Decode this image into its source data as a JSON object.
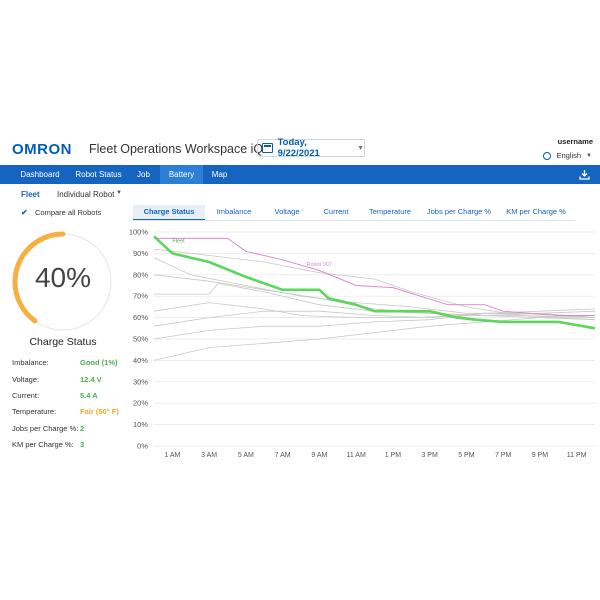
{
  "header": {
    "logo": "OMRON",
    "app_title": "Fleet Operations Workspace iQ",
    "date": "Today, 9/22/2021",
    "username": "username",
    "language": "English"
  },
  "nav": {
    "items": [
      {
        "label": "Dashboard"
      },
      {
        "label": "Robot Status"
      },
      {
        "label": "Job"
      },
      {
        "label": "Battery",
        "active": true
      },
      {
        "label": "Map"
      }
    ]
  },
  "subnav": {
    "fleet": "Fleet",
    "individual": "Individual Robot",
    "compare_label": "Compare all Robots",
    "compare_checked": true
  },
  "tabs": [
    {
      "label": "Charge Status",
      "active": true
    },
    {
      "label": "Imbalance"
    },
    {
      "label": "Voltage"
    },
    {
      "label": "Current"
    },
    {
      "label": "Temperature"
    },
    {
      "label": "Jobs per Charge %"
    },
    {
      "label": "KM per Charge %"
    }
  ],
  "gauge": {
    "value": 40,
    "display": "40%",
    "label": "Charge Status",
    "color": "#f5b041",
    "track_color": "#e6e6e6"
  },
  "stats": [
    {
      "label": "Imbalance:",
      "value": "Good (1%)",
      "color": "#4caf50"
    },
    {
      "label": "Voltage:",
      "value": "12.4 V",
      "color": "#4caf50"
    },
    {
      "label": "Current:",
      "value": "5.4 A",
      "color": "#4caf50"
    },
    {
      "label": "Temperature:",
      "value": "Fair (50° F)",
      "color": "#f5a623"
    },
    {
      "label": "Jobs per Charge %:",
      "value": "2",
      "color": "#4caf50"
    },
    {
      "label": "KM per Charge %:",
      "value": "3",
      "color": "#4caf50"
    }
  ],
  "colors": {
    "brand": "#005eb8",
    "nav_bg": "#1565c0",
    "fleet_line": "#5cd65c",
    "robot_line": "#d98cc9",
    "other_lines": "#c8c8c8"
  },
  "chart_data": {
    "type": "line",
    "y_ticks": [
      "100%",
      "90%",
      "80%",
      "70%",
      "60%",
      "50%",
      "40%",
      "30%",
      "20%",
      "10%",
      "0%"
    ],
    "x_ticks": [
      "1 AM",
      "3 AM",
      "5 AM",
      "7 AM",
      "9 AM",
      "11 AM",
      "1 PM",
      "3 PM",
      "5 PM",
      "7 PM",
      "9 PM",
      "11 PM"
    ],
    "ylim": [
      0,
      100
    ],
    "xlim": [
      0,
      24
    ],
    "grid": true,
    "series": [
      {
        "name": "Fleet",
        "role": "fleet",
        "points": [
          [
            0,
            98
          ],
          [
            1,
            90
          ],
          [
            3,
            86
          ],
          [
            5,
            79
          ],
          [
            7,
            73
          ],
          [
            9,
            73
          ],
          [
            9.5,
            69
          ],
          [
            11,
            66
          ],
          [
            12,
            63
          ],
          [
            15,
            63
          ],
          [
            16.5,
            60
          ],
          [
            17.5,
            59
          ],
          [
            19,
            58
          ],
          [
            22,
            58
          ],
          [
            24,
            55
          ]
        ]
      },
      {
        "name": "Robot 007",
        "role": "robot",
        "points": [
          [
            0,
            97
          ],
          [
            4,
            97
          ],
          [
            5,
            91
          ],
          [
            7,
            87
          ],
          [
            9,
            82
          ],
          [
            11,
            75
          ],
          [
            13,
            74
          ],
          [
            16,
            66
          ],
          [
            18,
            66
          ],
          [
            19,
            63
          ],
          [
            22,
            61
          ],
          [
            24,
            61
          ]
        ]
      },
      {
        "role": "other",
        "points": [
          [
            0,
            92
          ],
          [
            3,
            89
          ],
          [
            6,
            86
          ],
          [
            9,
            81
          ],
          [
            12,
            78
          ],
          [
            14,
            72
          ],
          [
            17,
            65
          ],
          [
            20,
            61
          ],
          [
            24,
            59
          ]
        ]
      },
      {
        "role": "other",
        "points": [
          [
            0,
            88
          ],
          [
            2,
            80
          ],
          [
            5,
            75
          ],
          [
            8,
            70
          ],
          [
            11,
            67
          ],
          [
            14,
            65
          ],
          [
            17,
            62
          ],
          [
            20,
            62
          ],
          [
            24,
            60
          ]
        ]
      },
      {
        "role": "other",
        "points": [
          [
            0,
            80
          ],
          [
            3,
            77
          ],
          [
            6,
            73
          ],
          [
            9,
            69
          ],
          [
            12,
            64
          ],
          [
            15,
            62
          ],
          [
            18,
            61
          ],
          [
            21,
            62
          ],
          [
            24,
            60
          ]
        ]
      },
      {
        "role": "other",
        "points": [
          [
            0,
            71
          ],
          [
            3,
            71
          ],
          [
            3.5,
            76
          ],
          [
            6,
            72
          ],
          [
            9,
            66
          ],
          [
            12,
            63
          ],
          [
            15,
            62
          ],
          [
            18,
            61
          ],
          [
            21,
            60
          ],
          [
            24,
            59
          ]
        ]
      },
      {
        "role": "other",
        "points": [
          [
            0,
            63
          ],
          [
            3,
            67
          ],
          [
            6,
            64
          ],
          [
            8,
            61
          ],
          [
            11,
            60
          ],
          [
            14,
            60
          ],
          [
            17,
            61
          ],
          [
            20,
            61
          ],
          [
            24,
            60
          ]
        ]
      },
      {
        "role": "other",
        "points": [
          [
            0,
            56
          ],
          [
            3,
            60
          ],
          [
            6,
            63
          ],
          [
            9,
            63
          ],
          [
            12,
            61
          ],
          [
            15,
            60
          ],
          [
            18,
            62
          ],
          [
            21,
            63
          ],
          [
            24,
            64
          ]
        ]
      },
      {
        "role": "other",
        "points": [
          [
            0,
            50
          ],
          [
            3,
            54
          ],
          [
            6,
            56
          ],
          [
            9,
            56
          ],
          [
            12,
            58
          ],
          [
            15,
            59
          ],
          [
            18,
            62
          ],
          [
            21,
            62
          ],
          [
            24,
            63
          ]
        ]
      },
      {
        "role": "other",
        "points": [
          [
            0,
            40
          ],
          [
            3,
            46
          ],
          [
            6,
            48
          ],
          [
            9,
            50
          ],
          [
            12,
            53
          ],
          [
            15,
            56
          ],
          [
            18,
            58
          ],
          [
            21,
            60
          ],
          [
            24,
            61
          ]
        ]
      }
    ],
    "labels": [
      {
        "series": "Fleet",
        "text": "Fleet",
        "at": [
          1,
          95
        ]
      },
      {
        "series": "Robot 007",
        "text": "Robot 007",
        "at": [
          8.3,
          84
        ]
      }
    ]
  }
}
